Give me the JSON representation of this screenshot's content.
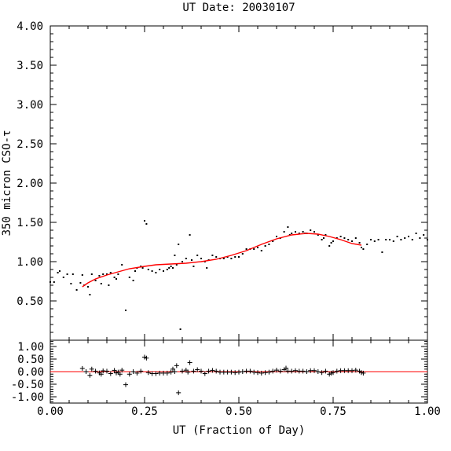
{
  "chart_data": [
    {
      "type": "scatter",
      "panel": "main",
      "title": "UT Date: 20030107",
      "xlabel": "",
      "ylabel": "350 micron CSO-τ",
      "xlim": [
        0.0,
        1.0
      ],
      "ylim": [
        0.0,
        4.0
      ],
      "y_ticks": [
        "4.00",
        "3.50",
        "3.00",
        "2.50",
        "2.00",
        "1.50",
        "1.00",
        "0.50"
      ],
      "colors": {
        "points": "#000000",
        "fit": "#ff0000"
      },
      "series": [
        {
          "name": "",
          "kind": "points",
          "points": [
            [
              0.0,
              0.74
            ],
            [
              0.01,
              0.74
            ],
            [
              0.02,
              0.86
            ],
            [
              0.025,
              0.88
            ],
            [
              0.035,
              0.8
            ],
            [
              0.045,
              0.84
            ],
            [
              0.055,
              0.72
            ],
            [
              0.06,
              0.84
            ],
            [
              0.07,
              0.64
            ],
            [
              0.08,
              0.73
            ],
            [
              0.085,
              0.83
            ],
            [
              0.09,
              0.7
            ],
            [
              0.1,
              0.68
            ],
            [
              0.105,
              0.58
            ],
            [
              0.11,
              0.84
            ],
            [
              0.12,
              0.76
            ],
            [
              0.13,
              0.82
            ],
            [
              0.135,
              0.72
            ],
            [
              0.14,
              0.84
            ],
            [
              0.15,
              0.84
            ],
            [
              0.155,
              0.7
            ],
            [
              0.16,
              0.86
            ],
            [
              0.17,
              0.8
            ],
            [
              0.175,
              0.78
            ],
            [
              0.18,
              0.84
            ],
            [
              0.19,
              0.96
            ],
            [
              0.2,
              0.38
            ],
            [
              0.21,
              0.8
            ],
            [
              0.22,
              0.76
            ],
            [
              0.225,
              0.88
            ],
            [
              0.23,
              0.92
            ],
            [
              0.24,
              0.94
            ],
            [
              0.245,
              0.92
            ],
            [
              0.25,
              1.52
            ],
            [
              0.255,
              1.48
            ],
            [
              0.26,
              0.9
            ],
            [
              0.27,
              0.88
            ],
            [
              0.28,
              0.86
            ],
            [
              0.29,
              0.9
            ],
            [
              0.3,
              0.88
            ],
            [
              0.31,
              0.9
            ],
            [
              0.315,
              0.92
            ],
            [
              0.32,
              0.94
            ],
            [
              0.325,
              0.92
            ],
            [
              0.33,
              1.08
            ],
            [
              0.335,
              0.96
            ],
            [
              0.34,
              1.22
            ],
            [
              0.345,
              0.14
            ],
            [
              0.35,
              1.0
            ],
            [
              0.36,
              1.04
            ],
            [
              0.37,
              1.34
            ],
            [
              0.375,
              1.02
            ],
            [
              0.38,
              0.94
            ],
            [
              0.39,
              1.08
            ],
            [
              0.4,
              1.04
            ],
            [
              0.41,
              1.0
            ],
            [
              0.415,
              0.92
            ],
            [
              0.42,
              1.02
            ],
            [
              0.43,
              1.08
            ],
            [
              0.44,
              1.06
            ],
            [
              0.45,
              1.04
            ],
            [
              0.46,
              1.04
            ],
            [
              0.47,
              1.06
            ],
            [
              0.48,
              1.04
            ],
            [
              0.49,
              1.06
            ],
            [
              0.5,
              1.06
            ],
            [
              0.51,
              1.1
            ],
            [
              0.52,
              1.16
            ],
            [
              0.53,
              1.16
            ],
            [
              0.54,
              1.16
            ],
            [
              0.55,
              1.18
            ],
            [
              0.56,
              1.14
            ],
            [
              0.57,
              1.2
            ],
            [
              0.58,
              1.22
            ],
            [
              0.59,
              1.26
            ],
            [
              0.6,
              1.32
            ],
            [
              0.61,
              1.3
            ],
            [
              0.62,
              1.38
            ],
            [
              0.63,
              1.44
            ],
            [
              0.635,
              1.34
            ],
            [
              0.64,
              1.36
            ],
            [
              0.65,
              1.38
            ],
            [
              0.66,
              1.36
            ],
            [
              0.67,
              1.38
            ],
            [
              0.675,
              1.36
            ],
            [
              0.68,
              1.36
            ],
            [
              0.69,
              1.4
            ],
            [
              0.7,
              1.38
            ],
            [
              0.71,
              1.34
            ],
            [
              0.72,
              1.28
            ],
            [
              0.725,
              1.3
            ],
            [
              0.73,
              1.34
            ],
            [
              0.74,
              1.2
            ],
            [
              0.745,
              1.24
            ],
            [
              0.75,
              1.26
            ],
            [
              0.76,
              1.3
            ],
            [
              0.77,
              1.32
            ],
            [
              0.78,
              1.3
            ],
            [
              0.79,
              1.28
            ],
            [
              0.8,
              1.26
            ],
            [
              0.81,
              1.3
            ],
            [
              0.82,
              1.24
            ],
            [
              0.825,
              1.18
            ],
            [
              0.83,
              1.16
            ],
            [
              0.84,
              1.22
            ],
            [
              0.85,
              1.28
            ],
            [
              0.86,
              1.26
            ],
            [
              0.87,
              1.28
            ],
            [
              0.88,
              1.12
            ],
            [
              0.89,
              1.28
            ],
            [
              0.9,
              1.28
            ],
            [
              0.91,
              1.26
            ],
            [
              0.92,
              1.32
            ],
            [
              0.93,
              1.28
            ],
            [
              0.94,
              1.3
            ],
            [
              0.95,
              1.32
            ],
            [
              0.96,
              1.28
            ],
            [
              0.97,
              1.36
            ],
            [
              0.98,
              1.3
            ],
            [
              0.99,
              1.34
            ],
            [
              1.0,
              1.28
            ]
          ]
        },
        {
          "name": "",
          "kind": "fit-line",
          "points": [
            [
              0.085,
              0.68
            ],
            [
              0.1,
              0.73
            ],
            [
              0.12,
              0.78
            ],
            [
              0.15,
              0.83
            ],
            [
              0.18,
              0.87
            ],
            [
              0.21,
              0.91
            ],
            [
              0.25,
              0.94
            ],
            [
              0.28,
              0.96
            ],
            [
              0.32,
              0.97
            ],
            [
              0.36,
              0.98
            ],
            [
              0.4,
              1.0
            ],
            [
              0.44,
              1.03
            ],
            [
              0.48,
              1.08
            ],
            [
              0.52,
              1.14
            ],
            [
              0.56,
              1.22
            ],
            [
              0.6,
              1.29
            ],
            [
              0.64,
              1.34
            ],
            [
              0.68,
              1.36
            ],
            [
              0.71,
              1.35
            ],
            [
              0.74,
              1.32
            ],
            [
              0.77,
              1.28
            ],
            [
              0.8,
              1.23
            ],
            [
              0.825,
              1.21
            ]
          ]
        }
      ]
    },
    {
      "type": "scatter",
      "panel": "residuals",
      "title": "",
      "xlabel": "UT (Fraction of Day)",
      "ylabel": "",
      "xlim": [
        0.0,
        1.0
      ],
      "ylim": [
        -1.25,
        1.25
      ],
      "x_ticks": [
        "0.00",
        "0.25",
        "0.50",
        "0.75",
        "1.00"
      ],
      "y_ticks": [
        "1.00",
        "0.50",
        "0.00",
        "-0.50",
        "-1.00"
      ],
      "colors": {
        "points": "#000000",
        "zero_line": "#ff0000"
      },
      "zero_line": 0,
      "series": [
        {
          "name": "",
          "kind": "plus-markers",
          "points": [
            [
              0.085,
              0.13
            ],
            [
              0.095,
              0.0
            ],
            [
              0.105,
              -0.15
            ],
            [
              0.11,
              0.1
            ],
            [
              0.12,
              0.02
            ],
            [
              0.13,
              -0.05
            ],
            [
              0.135,
              -0.1
            ],
            [
              0.14,
              0.03
            ],
            [
              0.15,
              0.02
            ],
            [
              0.16,
              -0.08
            ],
            [
              0.17,
              0.05
            ],
            [
              0.175,
              -0.05
            ],
            [
              0.18,
              -0.02
            ],
            [
              0.185,
              -0.1
            ],
            [
              0.19,
              0.06
            ],
            [
              0.2,
              -0.52
            ],
            [
              0.21,
              -0.1
            ],
            [
              0.22,
              0.0
            ],
            [
              0.23,
              -0.06
            ],
            [
              0.24,
              0.02
            ],
            [
              0.25,
              0.58
            ],
            [
              0.255,
              0.54
            ],
            [
              0.26,
              -0.04
            ],
            [
              0.27,
              -0.08
            ],
            [
              0.28,
              -0.08
            ],
            [
              0.29,
              -0.06
            ],
            [
              0.3,
              -0.06
            ],
            [
              0.31,
              -0.06
            ],
            [
              0.32,
              -0.02
            ],
            [
              0.325,
              0.1
            ],
            [
              0.33,
              0.0
            ],
            [
              0.335,
              0.24
            ],
            [
              0.34,
              -0.84
            ],
            [
              0.35,
              0.02
            ],
            [
              0.36,
              0.06
            ],
            [
              0.365,
              -0.02
            ],
            [
              0.37,
              0.36
            ],
            [
              0.38,
              0.02
            ],
            [
              0.39,
              0.08
            ],
            [
              0.4,
              0.02
            ],
            [
              0.41,
              -0.08
            ],
            [
              0.42,
              0.02
            ],
            [
              0.43,
              0.05
            ],
            [
              0.44,
              0.02
            ],
            [
              0.45,
              -0.02
            ],
            [
              0.46,
              -0.02
            ],
            [
              0.47,
              -0.02
            ],
            [
              0.48,
              -0.02
            ],
            [
              0.49,
              -0.04
            ],
            [
              0.5,
              -0.02
            ],
            [
              0.51,
              0.0
            ],
            [
              0.52,
              0.02
            ],
            [
              0.53,
              0.02
            ],
            [
              0.54,
              -0.02
            ],
            [
              0.55,
              -0.04
            ],
            [
              0.56,
              -0.06
            ],
            [
              0.57,
              -0.04
            ],
            [
              0.58,
              -0.02
            ],
            [
              0.59,
              0.02
            ],
            [
              0.6,
              0.06
            ],
            [
              0.61,
              0.02
            ],
            [
              0.62,
              0.08
            ],
            [
              0.625,
              0.14
            ],
            [
              0.63,
              0.02
            ],
            [
              0.64,
              0.02
            ],
            [
              0.65,
              0.04
            ],
            [
              0.66,
              0.02
            ],
            [
              0.67,
              0.02
            ],
            [
              0.68,
              0.0
            ],
            [
              0.69,
              0.04
            ],
            [
              0.7,
              0.04
            ],
            [
              0.71,
              0.0
            ],
            [
              0.72,
              -0.04
            ],
            [
              0.73,
              0.02
            ],
            [
              0.74,
              -0.1
            ],
            [
              0.745,
              -0.06
            ],
            [
              0.75,
              -0.04
            ],
            [
              0.76,
              0.02
            ],
            [
              0.77,
              0.04
            ],
            [
              0.78,
              0.04
            ],
            [
              0.79,
              0.04
            ],
            [
              0.8,
              0.04
            ],
            [
              0.81,
              0.06
            ],
            [
              0.82,
              0.02
            ],
            [
              0.825,
              -0.04
            ],
            [
              0.83,
              -0.06
            ]
          ]
        }
      ]
    }
  ]
}
